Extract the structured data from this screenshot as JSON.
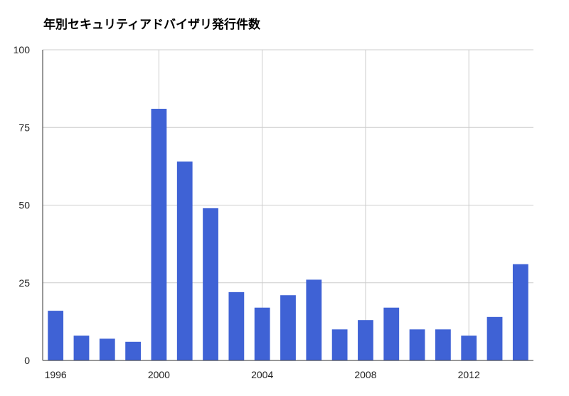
{
  "chart_data": {
    "type": "bar",
    "title": "年別セキュリティアドバイザリ発行件数",
    "xlabel": "",
    "ylabel": "",
    "x": [
      1996,
      1997,
      1998,
      1999,
      2000,
      2001,
      2002,
      2003,
      2004,
      2005,
      2006,
      2007,
      2008,
      2009,
      2010,
      2011,
      2012,
      2013,
      2014
    ],
    "values": [
      16,
      8,
      7,
      6,
      81,
      64,
      49,
      22,
      17,
      21,
      26,
      10,
      13,
      17,
      10,
      10,
      8,
      14,
      31
    ],
    "ylim": [
      0,
      100
    ],
    "yticks": [
      "0",
      "25",
      "50",
      "75",
      "100"
    ],
    "xticks": [
      "1996",
      "2000",
      "2004",
      "2008",
      "2012"
    ],
    "color": "#3f62d5",
    "grid": true,
    "legend": "none"
  }
}
